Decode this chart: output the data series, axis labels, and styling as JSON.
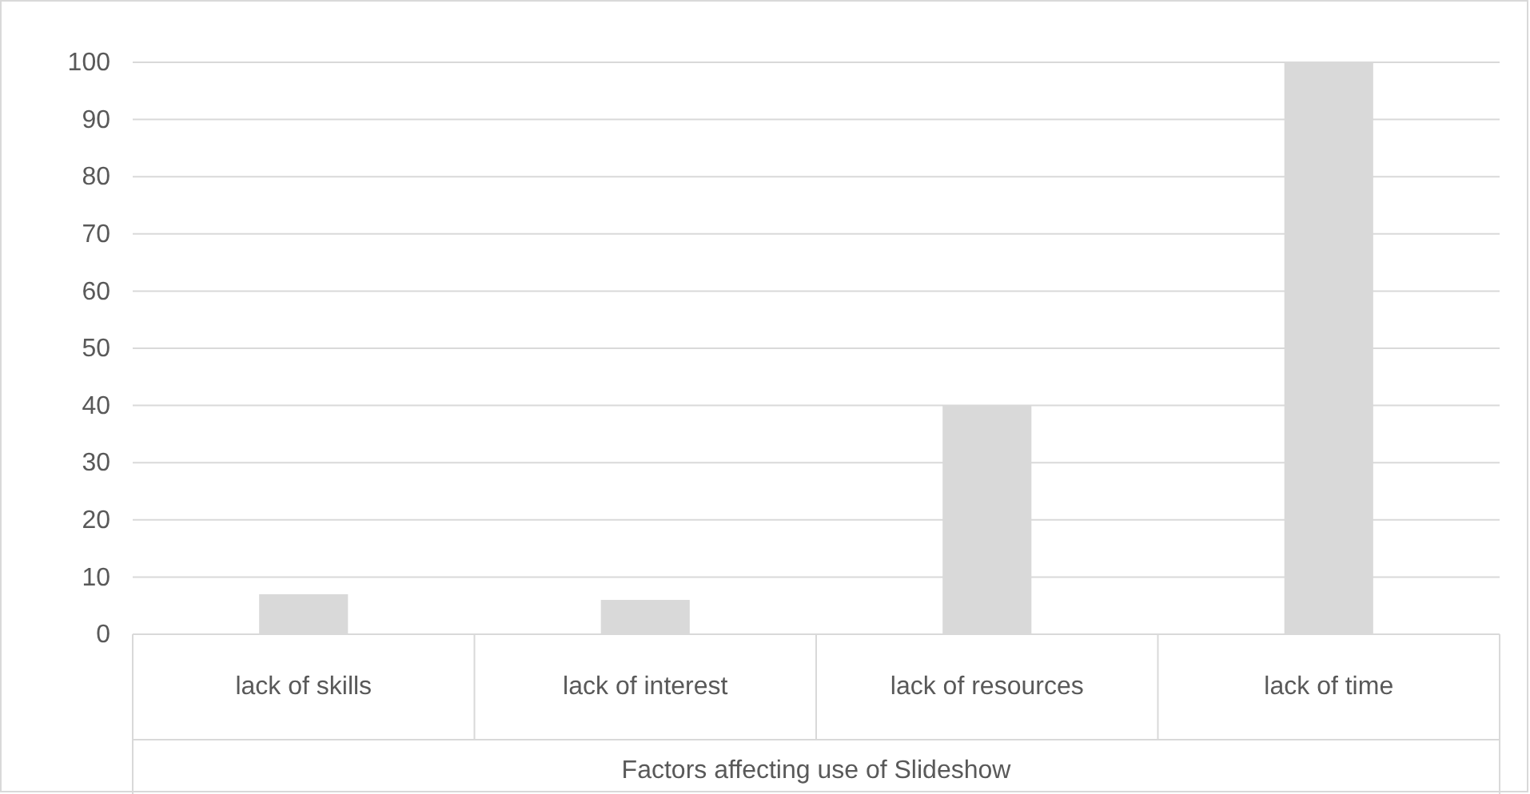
{
  "chart_data": {
    "type": "bar",
    "xlabel": "Factors affecting use of Slideshow",
    "categories": [
      "lack of skills",
      "lack of interest",
      "lack of resources",
      "lack of time"
    ],
    "values": [
      7,
      6,
      40,
      100
    ],
    "color": "#d9d9d9",
    "ylim": [
      0,
      100
    ],
    "yticks": [
      0,
      10,
      20,
      30,
      40,
      50,
      60,
      70,
      80,
      90,
      100
    ],
    "grid": "y"
  }
}
